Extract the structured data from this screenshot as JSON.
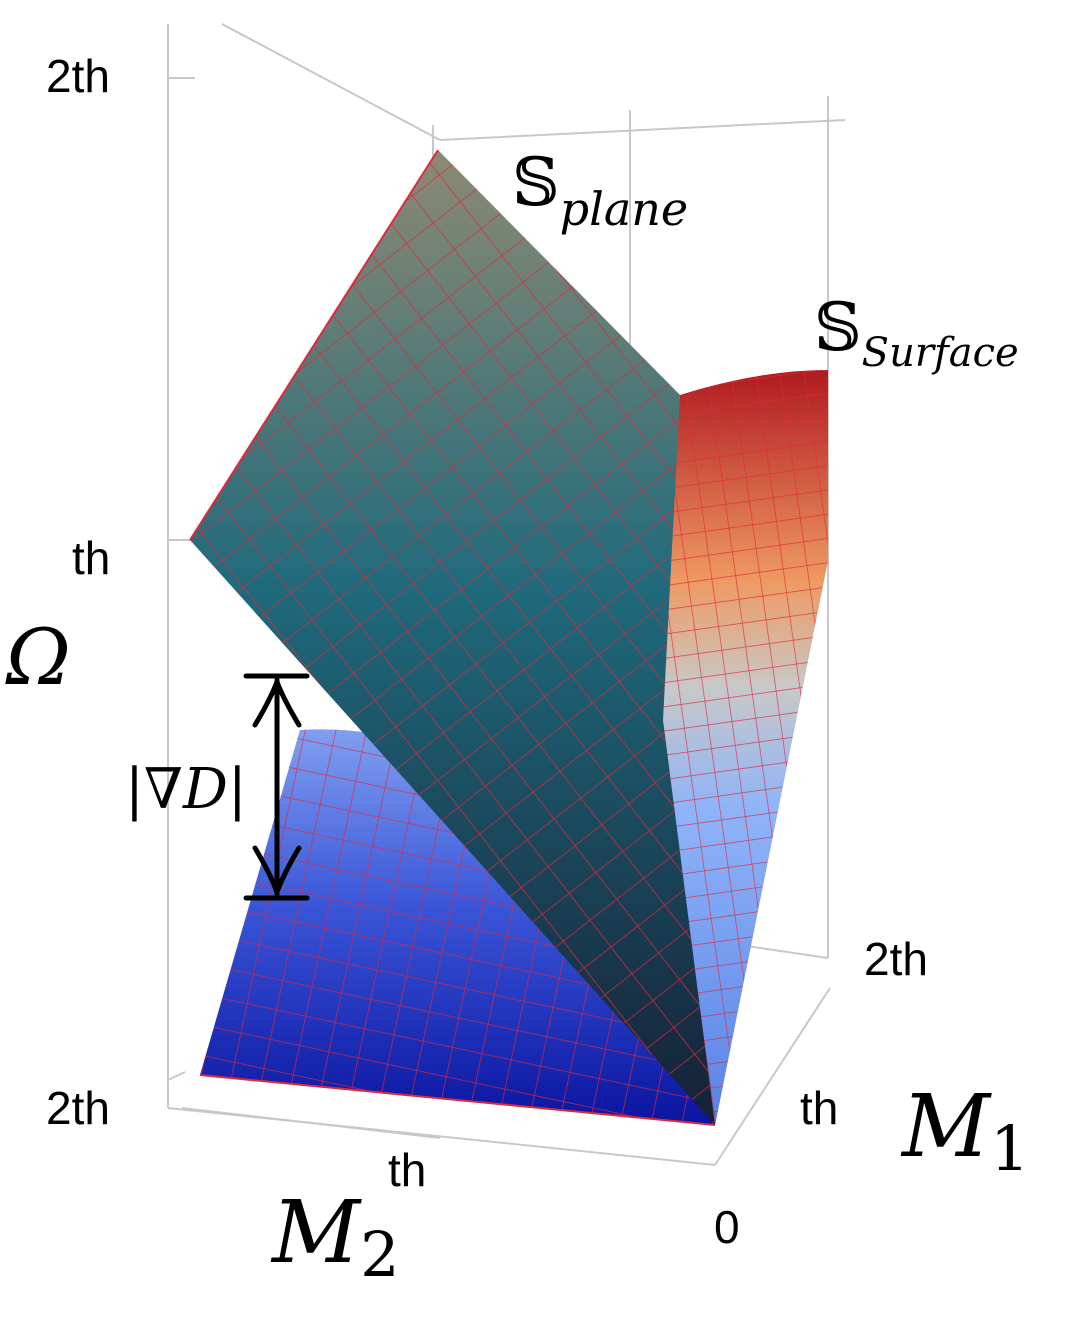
{
  "figure": {
    "z_axis": {
      "label": "Ω",
      "ticks": [
        "2th",
        "th"
      ]
    },
    "m1_axis": {
      "label_main": "M",
      "label_sub": "1",
      "ticks": [
        "2th",
        "th",
        "0"
      ]
    },
    "m2_axis": {
      "label_main": "M",
      "label_sub": "2",
      "ticks": [
        "2th",
        "th"
      ]
    },
    "plane_label": {
      "symbol": "𝕊",
      "sub": "plane"
    },
    "surface_label": {
      "symbol": "𝕊",
      "sub": "Surface"
    },
    "gap_label": "|∇D|",
    "colors": {
      "mesh": "#e0283c",
      "plane_top": "#8c8a74",
      "plane_mid": "#1f6a7c",
      "plane_bottom": "#152036",
      "surface_low": "#0a14a0",
      "surface_mid": "#8fb4f8",
      "surface_warm": "#ee9a62",
      "surface_high": "#b01a20"
    }
  }
}
